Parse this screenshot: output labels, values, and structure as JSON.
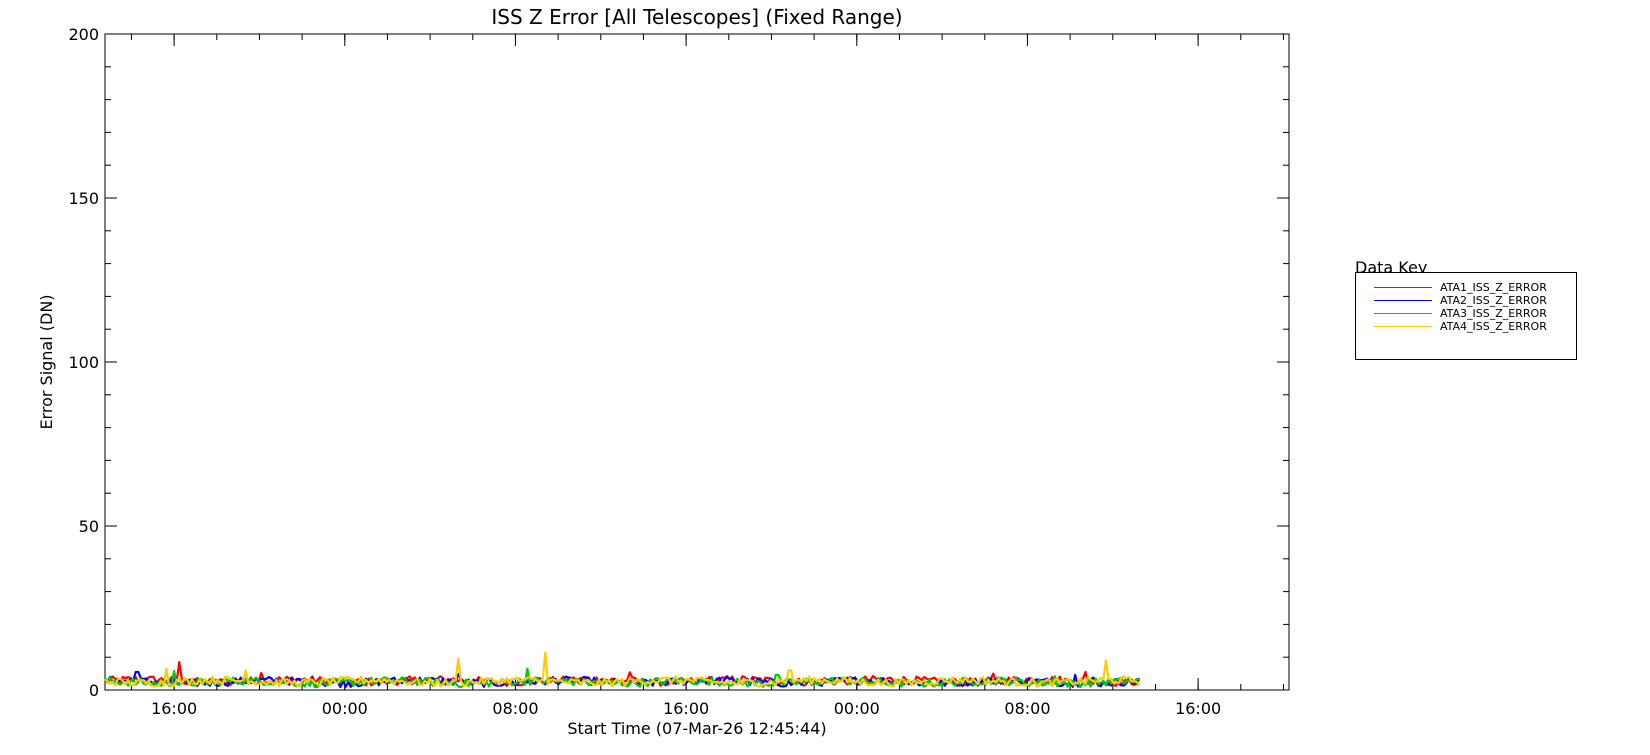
{
  "chart_data": {
    "type": "line",
    "title": "ISS Z Error [All Telescopes] (Fixed Range)",
    "xlabel": "Start Time (07-Mar-26 12:45:44)",
    "ylabel": "Error Signal (DN)",
    "ylim": [
      0,
      200
    ],
    "y_ticks": [
      "0",
      "50",
      "100",
      "150",
      "200"
    ],
    "xlim": [
      0,
      55.5
    ],
    "x_ticks": [
      {
        "value": 3.24,
        "label": "16:00"
      },
      {
        "value": 11.24,
        "label": "00:00"
      },
      {
        "value": 19.24,
        "label": "08:00"
      },
      {
        "value": 27.24,
        "label": "16:00"
      },
      {
        "value": 35.24,
        "label": "00:00"
      },
      {
        "value": 43.24,
        "label": "08:00"
      },
      {
        "value": 51.24,
        "label": "16:00"
      }
    ],
    "x_unit": "hours since start",
    "grid": false,
    "legend": {
      "title": "Data Key",
      "placement": "right"
    },
    "series": [
      {
        "name": "ATA1_ISS_Z_ERROR",
        "color": "#ff0000",
        "base": 2.8,
        "spikes": [
          [
            3.5,
            8.5
          ],
          [
            7.3,
            5.2
          ],
          [
            24.6,
            5.4
          ],
          [
            41.6,
            5.0
          ],
          [
            46.0,
            5.5
          ]
        ]
      },
      {
        "name": "ATA2_ISS_Z_ERROR",
        "color": "#0000ff",
        "base": 2.5,
        "spikes": [
          [
            1.5,
            5.5
          ],
          [
            16.6,
            4.8
          ],
          [
            45.5,
            4.6
          ],
          [
            46.3,
            3.8
          ]
        ]
      },
      {
        "name": "ATA3_ISS_Z_ERROR",
        "color": "#00cc00",
        "base": 2.4,
        "spikes": [
          [
            3.2,
            5.8
          ],
          [
            19.8,
            6.5
          ],
          [
            31.5,
            4.6
          ],
          [
            44.5,
            4.2
          ]
        ]
      },
      {
        "name": "ATA4_ISS_Z_ERROR",
        "color": "#ffcc00",
        "base": 2.6,
        "spikes": [
          [
            2.9,
            6.5
          ],
          [
            6.6,
            6.0
          ],
          [
            16.6,
            9.5
          ],
          [
            20.6,
            11.5
          ],
          [
            32.1,
            6.0
          ],
          [
            46.9,
            9.0
          ]
        ]
      }
    ],
    "data_end": 48.5
  }
}
